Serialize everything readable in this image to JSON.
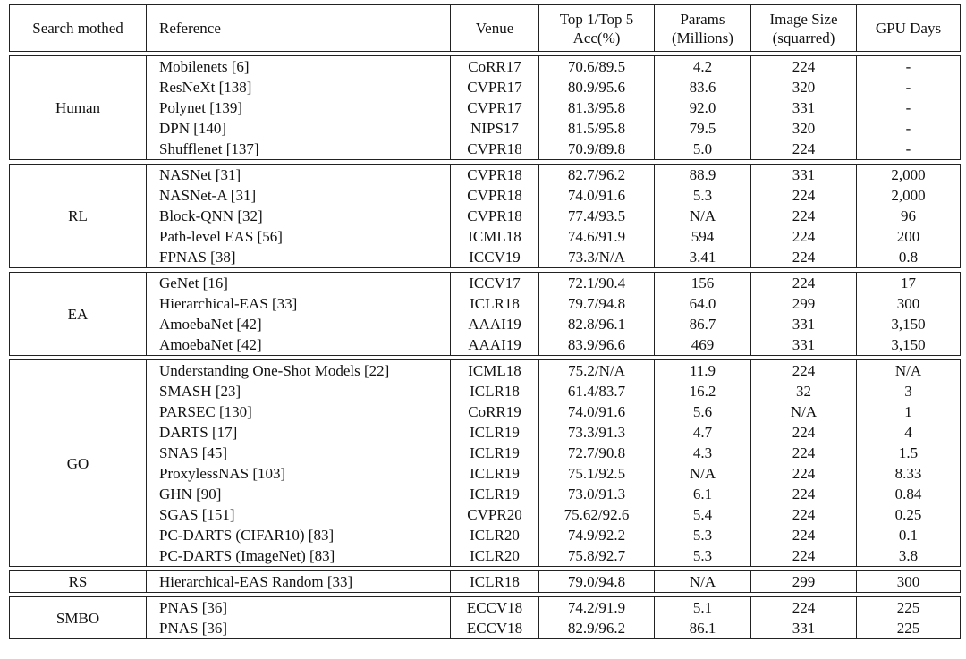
{
  "header": [
    [
      "Search mothed"
    ],
    [
      "Reference"
    ],
    [
      "Venue"
    ],
    [
      "Top 1/Top 5",
      "Acc(%)"
    ],
    [
      "Params",
      "(Millions)"
    ],
    [
      "Image Size",
      "(squarred)"
    ],
    [
      "GPU Days"
    ]
  ],
  "groups": [
    {
      "method": "Human",
      "rows": [
        [
          "Mobilenets [6]",
          "CoRR17",
          "70.6/89.5",
          "4.2",
          "224",
          "-"
        ],
        [
          "ResNeXt [138]",
          "CVPR17",
          "80.9/95.6",
          "83.6",
          "320",
          "-"
        ],
        [
          "Polynet [139]",
          "CVPR17",
          "81.3/95.8",
          "92.0",
          "331",
          "-"
        ],
        [
          "DPN [140]",
          "NIPS17",
          "81.5/95.8",
          "79.5",
          "320",
          "-"
        ],
        [
          "Shufflenet [137]",
          "CVPR18",
          "70.9/89.8",
          "5.0",
          "224",
          "-"
        ]
      ]
    },
    {
      "method": "RL",
      "rows": [
        [
          "NASNet [31]",
          "CVPR18",
          "82.7/96.2",
          "88.9",
          "331",
          "2,000"
        ],
        [
          "NASNet-A [31]",
          "CVPR18",
          "74.0/91.6",
          "5.3",
          "224",
          "2,000"
        ],
        [
          "Block-QNN [32]",
          "CVPR18",
          "77.4/93.5",
          "N/A",
          "224",
          "96"
        ],
        [
          "Path-level EAS [56]",
          "ICML18",
          "74.6/91.9",
          "594",
          "224",
          "200"
        ],
        [
          "FPNAS [38]",
          "ICCV19",
          "73.3/N/A",
          "3.41",
          "224",
          "0.8"
        ]
      ]
    },
    {
      "method": "EA",
      "rows": [
        [
          "GeNet [16]",
          "ICCV17",
          "72.1/90.4",
          "156",
          "224",
          "17"
        ],
        [
          "Hierarchical-EAS [33]",
          "ICLR18",
          "79.7/94.8",
          "64.0",
          "299",
          "300"
        ],
        [
          "AmoebaNet [42]",
          "AAAI19",
          "82.8/96.1",
          "86.7",
          "331",
          "3,150"
        ],
        [
          "AmoebaNet [42]",
          "AAAI19",
          "83.9/96.6",
          "469",
          "331",
          "3,150"
        ]
      ]
    },
    {
      "method": "GO",
      "rows": [
        [
          "Understanding One-Shot Models [22]",
          "ICML18",
          "75.2/N/A",
          "11.9",
          "224",
          "N/A"
        ],
        [
          "SMASH [23]",
          "ICLR18",
          "61.4/83.7",
          "16.2",
          "32",
          "3"
        ],
        [
          "PARSEC [130]",
          "CoRR19",
          "74.0/91.6",
          "5.6",
          "N/A",
          "1"
        ],
        [
          "DARTS [17]",
          "ICLR19",
          "73.3/91.3",
          "4.7",
          "224",
          "4"
        ],
        [
          "SNAS [45]",
          "ICLR19",
          "72.7/90.8",
          "4.3",
          "224",
          "1.5"
        ],
        [
          "ProxylessNAS [103]",
          "ICLR19",
          "75.1/92.5",
          "N/A",
          "224",
          "8.33"
        ],
        [
          "GHN [90]",
          "ICLR19",
          "73.0/91.3",
          "6.1",
          "224",
          "0.84"
        ],
        [
          "SGAS [151]",
          "CVPR20",
          "75.62/92.6",
          "5.4",
          "224",
          "0.25"
        ],
        [
          "PC-DARTS (CIFAR10) [83]",
          "ICLR20",
          "74.9/92.2",
          "5.3",
          "224",
          "0.1"
        ],
        [
          "PC-DARTS (ImageNet) [83]",
          "ICLR20",
          "75.8/92.7",
          "5.3",
          "224",
          "3.8"
        ]
      ]
    },
    {
      "method": "RS",
      "rows": [
        [
          "Hierarchical-EAS Random [33]",
          "ICLR18",
          "79.0/94.8",
          "N/A",
          "299",
          "300"
        ]
      ]
    },
    {
      "method": "SMBO",
      "rows": [
        [
          "PNAS [36]",
          "ECCV18",
          "74.2/91.9",
          "5.1",
          "224",
          "225"
        ],
        [
          "PNAS [36]",
          "ECCV18",
          "82.9/96.2",
          "86.1",
          "331",
          "225"
        ]
      ]
    }
  ]
}
